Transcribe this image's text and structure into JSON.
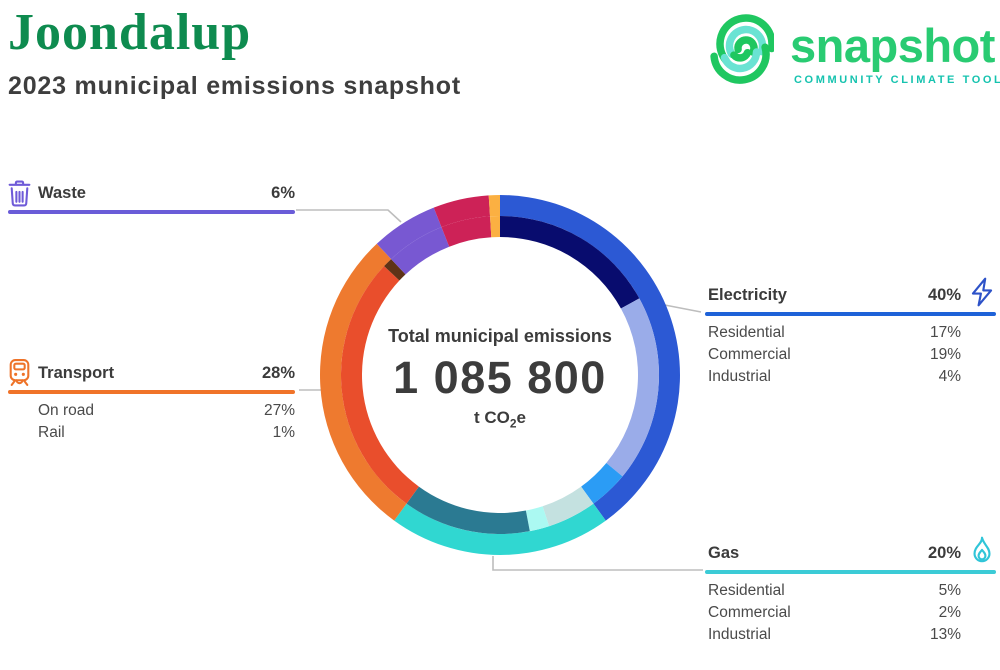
{
  "header": {
    "title": "Joondalup",
    "subtitle": "2023 municipal emissions snapshot"
  },
  "logo": {
    "name": "snapshot",
    "tagline": "COMMUNITY CLIMATE TOOL",
    "word_color": "#29cb72",
    "tagline_color": "#16c3af",
    "arc_green": "#1fc760",
    "arc_teal": "#6ae3d3"
  },
  "center": {
    "label": "Total municipal emissions",
    "value": "1 085 800",
    "unit_prefix": "t CO",
    "unit_sub": "2",
    "unit_suffix": "e"
  },
  "categories": [
    {
      "id": "waste",
      "label": "Waste",
      "value": "6%",
      "color": "#6a5cd8",
      "icon": "trash-icon",
      "items": []
    },
    {
      "id": "transport",
      "label": "Transport",
      "value": "28%",
      "color": "#f07329",
      "icon": "train-icon",
      "items": [
        {
          "label": "On road",
          "value": "27%"
        },
        {
          "label": "Rail",
          "value": "1%"
        }
      ]
    },
    {
      "id": "electricity",
      "label": "Electricity",
      "value": "40%",
      "color": "#1e62d8",
      "icon": "lightning-icon",
      "items": [
        {
          "label": "Residential",
          "value": "17%"
        },
        {
          "label": "Commercial",
          "value": "19%"
        },
        {
          "label": "Industrial",
          "value": "4%"
        }
      ]
    },
    {
      "id": "gas",
      "label": "Gas",
      "value": "20%",
      "color": "#3bcbd6",
      "icon": "flame-icon",
      "items": [
        {
          "label": "Residential",
          "value": "5%"
        },
        {
          "label": "Commercial",
          "value": "2%"
        },
        {
          "label": "Industrial",
          "value": "13%"
        }
      ]
    }
  ],
  "chart_data": {
    "type": "pie",
    "subtype": "two-ring-donut",
    "title": "Total municipal emissions",
    "total_value": "1 085 800",
    "unit": "t CO2e",
    "center": [
      500,
      375
    ],
    "start_angle_deg_from_top": 0,
    "direction": "clockwise",
    "rings": [
      {
        "name": "categories",
        "r_out": 180,
        "r_in": 159,
        "segments": [
          {
            "name": "Electricity",
            "pct": 40,
            "color": "#2c59d4"
          },
          {
            "name": "Gas",
            "pct": 20,
            "color": "#30d7d1"
          },
          {
            "name": "Transport",
            "pct": 28,
            "color": "#ee7a2f"
          },
          {
            "name": "Waste",
            "pct": 6,
            "color": "#7858d2"
          },
          {
            "name": "unlabeled-a",
            "pct": 5,
            "color": "#cd2257"
          },
          {
            "name": "unlabeled-b",
            "pct": 1,
            "color": "#fbb042"
          }
        ]
      },
      {
        "name": "subcategories",
        "r_out": 159,
        "r_in": 138,
        "segments": [
          {
            "name": "Electricity Residential",
            "pct": 17,
            "color": "#080c6e"
          },
          {
            "name": "Electricity Commercial",
            "pct": 19,
            "color": "#9aace9"
          },
          {
            "name": "Electricity Industrial",
            "pct": 4,
            "color": "#2b9cf5"
          },
          {
            "name": "Gas Residential",
            "pct": 5,
            "color": "#c4e1e0"
          },
          {
            "name": "Gas Commercial",
            "pct": 2,
            "color": "#abf9f2"
          },
          {
            "name": "Gas Industrial",
            "pct": 13,
            "color": "#2b7a92"
          },
          {
            "name": "Transport On road",
            "pct": 27,
            "color": "#e94e2c"
          },
          {
            "name": "Transport Rail",
            "pct": 1,
            "color": "#5e3317"
          },
          {
            "name": "Waste",
            "pct": 6,
            "color": "#7858d2"
          },
          {
            "name": "unlabeled-a",
            "pct": 5,
            "color": "#cd2257"
          },
          {
            "name": "unlabeled-b",
            "pct": 1,
            "color": "#fbb042"
          }
        ]
      }
    ]
  }
}
